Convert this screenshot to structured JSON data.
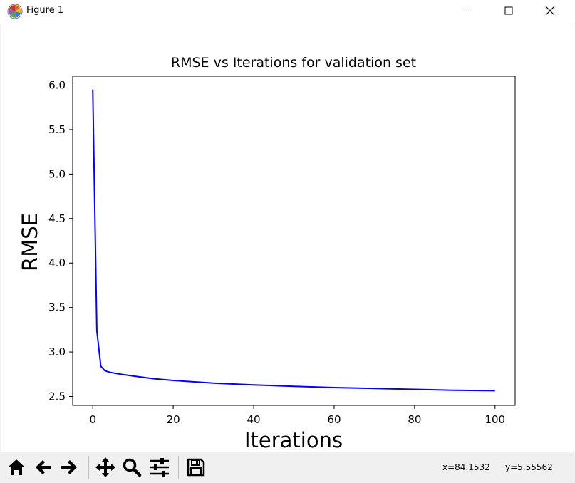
{
  "window": {
    "title": "Figure 1",
    "icons": {
      "app": "matplotlib-icon",
      "minimize": "minimize-icon",
      "maximize": "maximize-icon",
      "close": "close-icon"
    }
  },
  "chart_data": {
    "type": "line",
    "title": "RMSE vs Iterations for validation set",
    "xlabel": "Iterations",
    "ylabel": "RMSE",
    "xlim": [
      -5,
      105
    ],
    "ylim": [
      2.4,
      6.1
    ],
    "xticks": [
      0,
      20,
      40,
      60,
      80,
      100
    ],
    "xtick_labels": [
      "0",
      "20",
      "40",
      "60",
      "80",
      "100"
    ],
    "yticks": [
      2.5,
      3.0,
      3.5,
      4.0,
      4.5,
      5.0,
      5.5,
      6.0
    ],
    "ytick_labels": [
      "2.5",
      "3.0",
      "3.5",
      "4.0",
      "4.5",
      "5.0",
      "5.5",
      "6.0"
    ],
    "grid": false,
    "color": "#0000ff",
    "x": [
      0,
      1,
      2,
      3,
      4,
      5,
      7,
      10,
      15,
      20,
      30,
      40,
      50,
      60,
      70,
      80,
      90,
      100
    ],
    "y": [
      5.95,
      3.24,
      2.84,
      2.79,
      2.775,
      2.765,
      2.75,
      2.73,
      2.7,
      2.68,
      2.65,
      2.63,
      2.615,
      2.6,
      2.59,
      2.58,
      2.57,
      2.565
    ]
  },
  "toolbar": {
    "buttons": [
      {
        "name": "home-button",
        "icon": "home-icon"
      },
      {
        "name": "back-button",
        "icon": "arrow-left-icon"
      },
      {
        "name": "forward-button",
        "icon": "arrow-right-icon"
      },
      {
        "name": "pan-button",
        "icon": "move-icon"
      },
      {
        "name": "zoom-button",
        "icon": "magnifier-icon"
      },
      {
        "name": "configure-subplots-button",
        "icon": "sliders-icon"
      },
      {
        "name": "save-button",
        "icon": "floppy-disk-icon"
      }
    ],
    "coord_x": "x=84.1532",
    "coord_y": "y=5.55562"
  }
}
